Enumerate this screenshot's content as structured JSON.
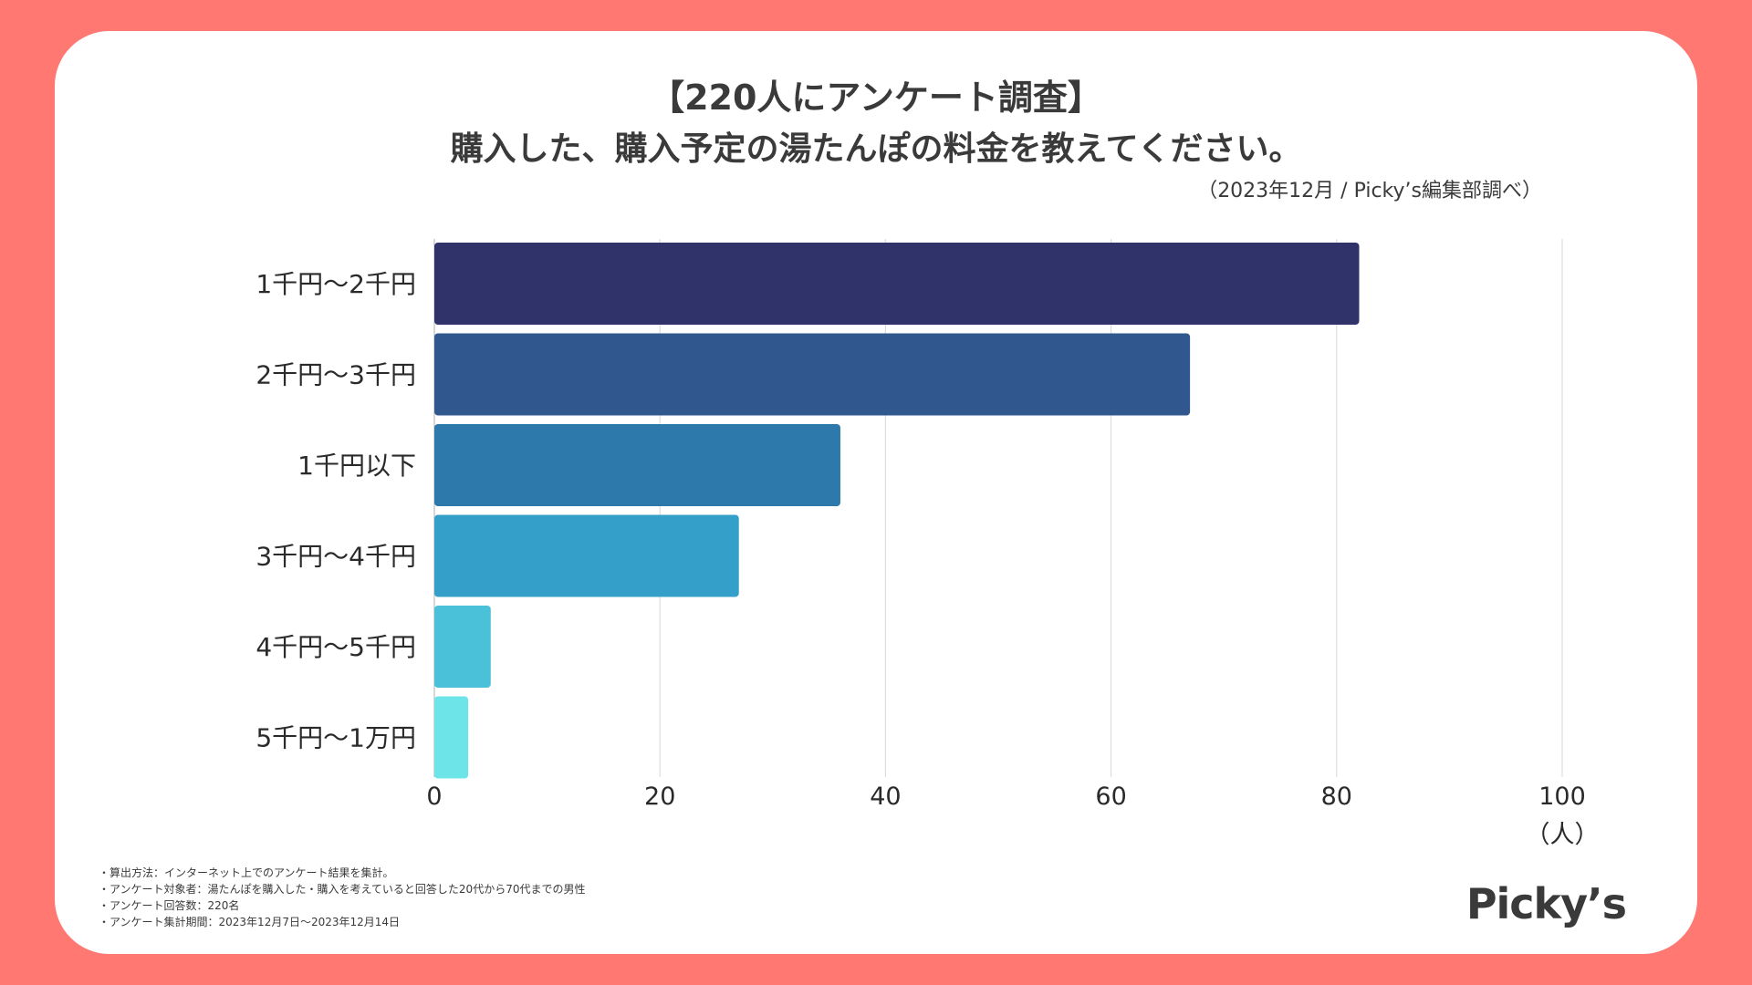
{
  "header": {
    "title_line1": "【220人にアンケート調査】",
    "title_line2": "購入した、購入予定の湯たんぽの料金を教えてください。",
    "source": "（2023年12月 / Picky’s編集部調べ）"
  },
  "chart_data": {
    "type": "bar",
    "orientation": "horizontal",
    "title": "購入した、購入予定の湯たんぽの料金を教えてください。",
    "categories": [
      "1千円～2千円",
      "2千円～3千円",
      "1千円以下",
      "3千円～4千円",
      "4千円～5千円",
      "5千円～1万円"
    ],
    "values": [
      82,
      67,
      36,
      27,
      5,
      3
    ],
    "colors": [
      "#2f3369",
      "#30588f",
      "#2e79ac",
      "#349fc8",
      "#4ac1d8",
      "#6ce4e8"
    ],
    "xlim": [
      0,
      100
    ],
    "xticks": [
      0,
      20,
      40,
      60,
      80,
      100
    ],
    "xlabel": "（人）",
    "ylabel": "",
    "grid": true
  },
  "footnotes": [
    "・算出方法：インターネット上でのアンケート結果を集計。",
    "・アンケート対象者：湯たんぽを購入した・購入を考えていると回答した20代から70代までの男性",
    "・アンケート回答数：220名",
    "・アンケート集計期間：2023年12月7日～2023年12月14日"
  ],
  "brand": {
    "logo_text": "Picky’s"
  }
}
